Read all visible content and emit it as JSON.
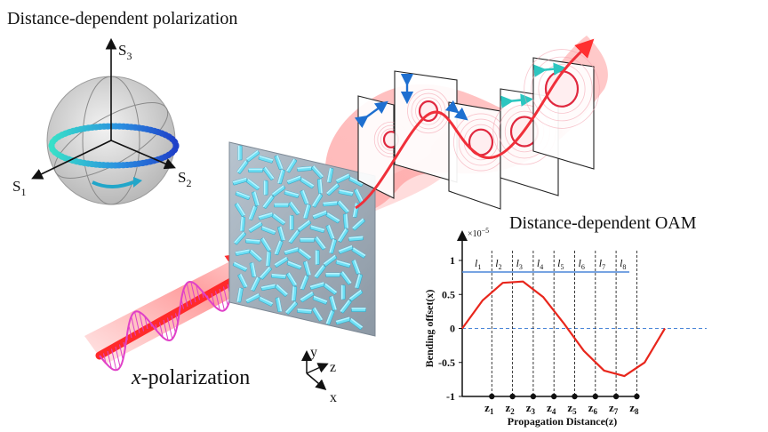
{
  "titles": {
    "polarization": "Distance-dependent polarization",
    "oam": "Distance-dependent OAM",
    "input_prefix": "x",
    "input_suffix": "-polarization"
  },
  "sphere_axes": {
    "s1": "S",
    "s1_sub": "1",
    "s2": "S",
    "s2_sub": "2",
    "s3": "S",
    "s3_sub": "3"
  },
  "coord_axes": {
    "x": "x",
    "y": "y",
    "z": "z"
  },
  "colors": {
    "beam": "#ff3b3b",
    "wave": "#e040c8",
    "metasurface": "#5fd6f0",
    "curve": "#e8261c",
    "sphere_ring_start": "#37e0c8",
    "sphere_ring_end": "#1f5fd8",
    "guide_line": "#4a86d8"
  },
  "chart_data": {
    "type": "line",
    "ylabel": "Bending offset(x)",
    "xlabel": "Propagation Distance(z)",
    "y_multiplier": "×10",
    "y_multiplier_exp": "−5",
    "yticks": [
      "1",
      "0.5",
      "0",
      "-0.5",
      "-1"
    ],
    "ylim": [
      -1,
      1
    ],
    "xlim": [
      0,
      10
    ],
    "series": [
      {
        "x": [
          0,
          1,
          2,
          3,
          4,
          5,
          6,
          7,
          8,
          9,
          10
        ],
        "y": [
          0,
          0.41,
          0.67,
          0.69,
          0.46,
          0.08,
          -0.33,
          -0.62,
          -0.7,
          -0.5,
          0
        ]
      }
    ],
    "segments": [
      {
        "l": "l",
        "sub": "1"
      },
      {
        "l": "l",
        "sub": "2"
      },
      {
        "l": "l",
        "sub": "3"
      },
      {
        "l": "l",
        "sub": "4"
      },
      {
        "l": "l",
        "sub": "5"
      },
      {
        "l": "l",
        "sub": "6"
      },
      {
        "l": "l",
        "sub": "7"
      },
      {
        "l": "l",
        "sub": "8"
      }
    ],
    "z_marks": [
      {
        "l": "z",
        "sub": "1"
      },
      {
        "l": "z",
        "sub": "2"
      },
      {
        "l": "z",
        "sub": "3"
      },
      {
        "l": "z",
        "sub": "4"
      },
      {
        "l": "z",
        "sub": "5"
      },
      {
        "l": "z",
        "sub": "6"
      },
      {
        "l": "z",
        "sub": "7"
      },
      {
        "l": "z",
        "sub": "8"
      }
    ],
    "reference_lines": [
      0.83,
      0
    ]
  }
}
